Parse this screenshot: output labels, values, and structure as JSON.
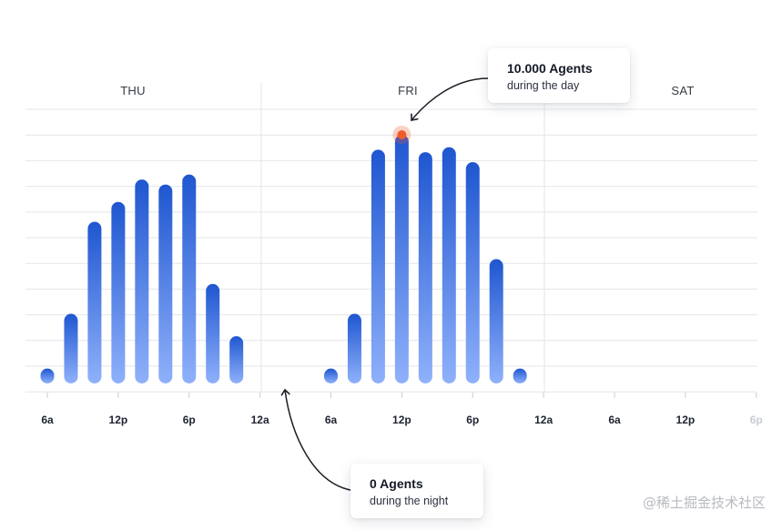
{
  "chart_data": {
    "type": "bar",
    "days": [
      {
        "label": "THU",
        "hours": [
          6,
          8,
          10,
          12,
          14,
          16,
          18,
          20,
          22
        ],
        "values": [
          6,
          28,
          65,
          73,
          82,
          80,
          84,
          40,
          19
        ]
      },
      {
        "label": "FRI",
        "hours": [
          6,
          8,
          10,
          12,
          14,
          16,
          18,
          20,
          22
        ],
        "values": [
          6,
          28,
          94,
          100,
          93,
          95,
          89,
          50,
          6
        ]
      },
      {
        "label": "SAT",
        "hours": [],
        "values": []
      }
    ],
    "x_tick_labels": [
      "6a",
      "12p",
      "6p",
      "12a",
      "6a",
      "12p",
      "6p",
      "12a",
      "6a",
      "12p",
      "6p"
    ],
    "ylim": [
      0,
      100
    ],
    "grid": true,
    "colors": {
      "bar_top": "#1f56d0",
      "bar_bottom": "#8fb1fb",
      "peak_marker": "#ef5b2a",
      "grid": "#e4e6ea"
    },
    "annotations": [
      {
        "title": "10.000 Agents",
        "text": "during the day"
      },
      {
        "title": "0 Agents",
        "text": "during the night"
      }
    ]
  },
  "watermark": "@稀土掘金技术社区"
}
